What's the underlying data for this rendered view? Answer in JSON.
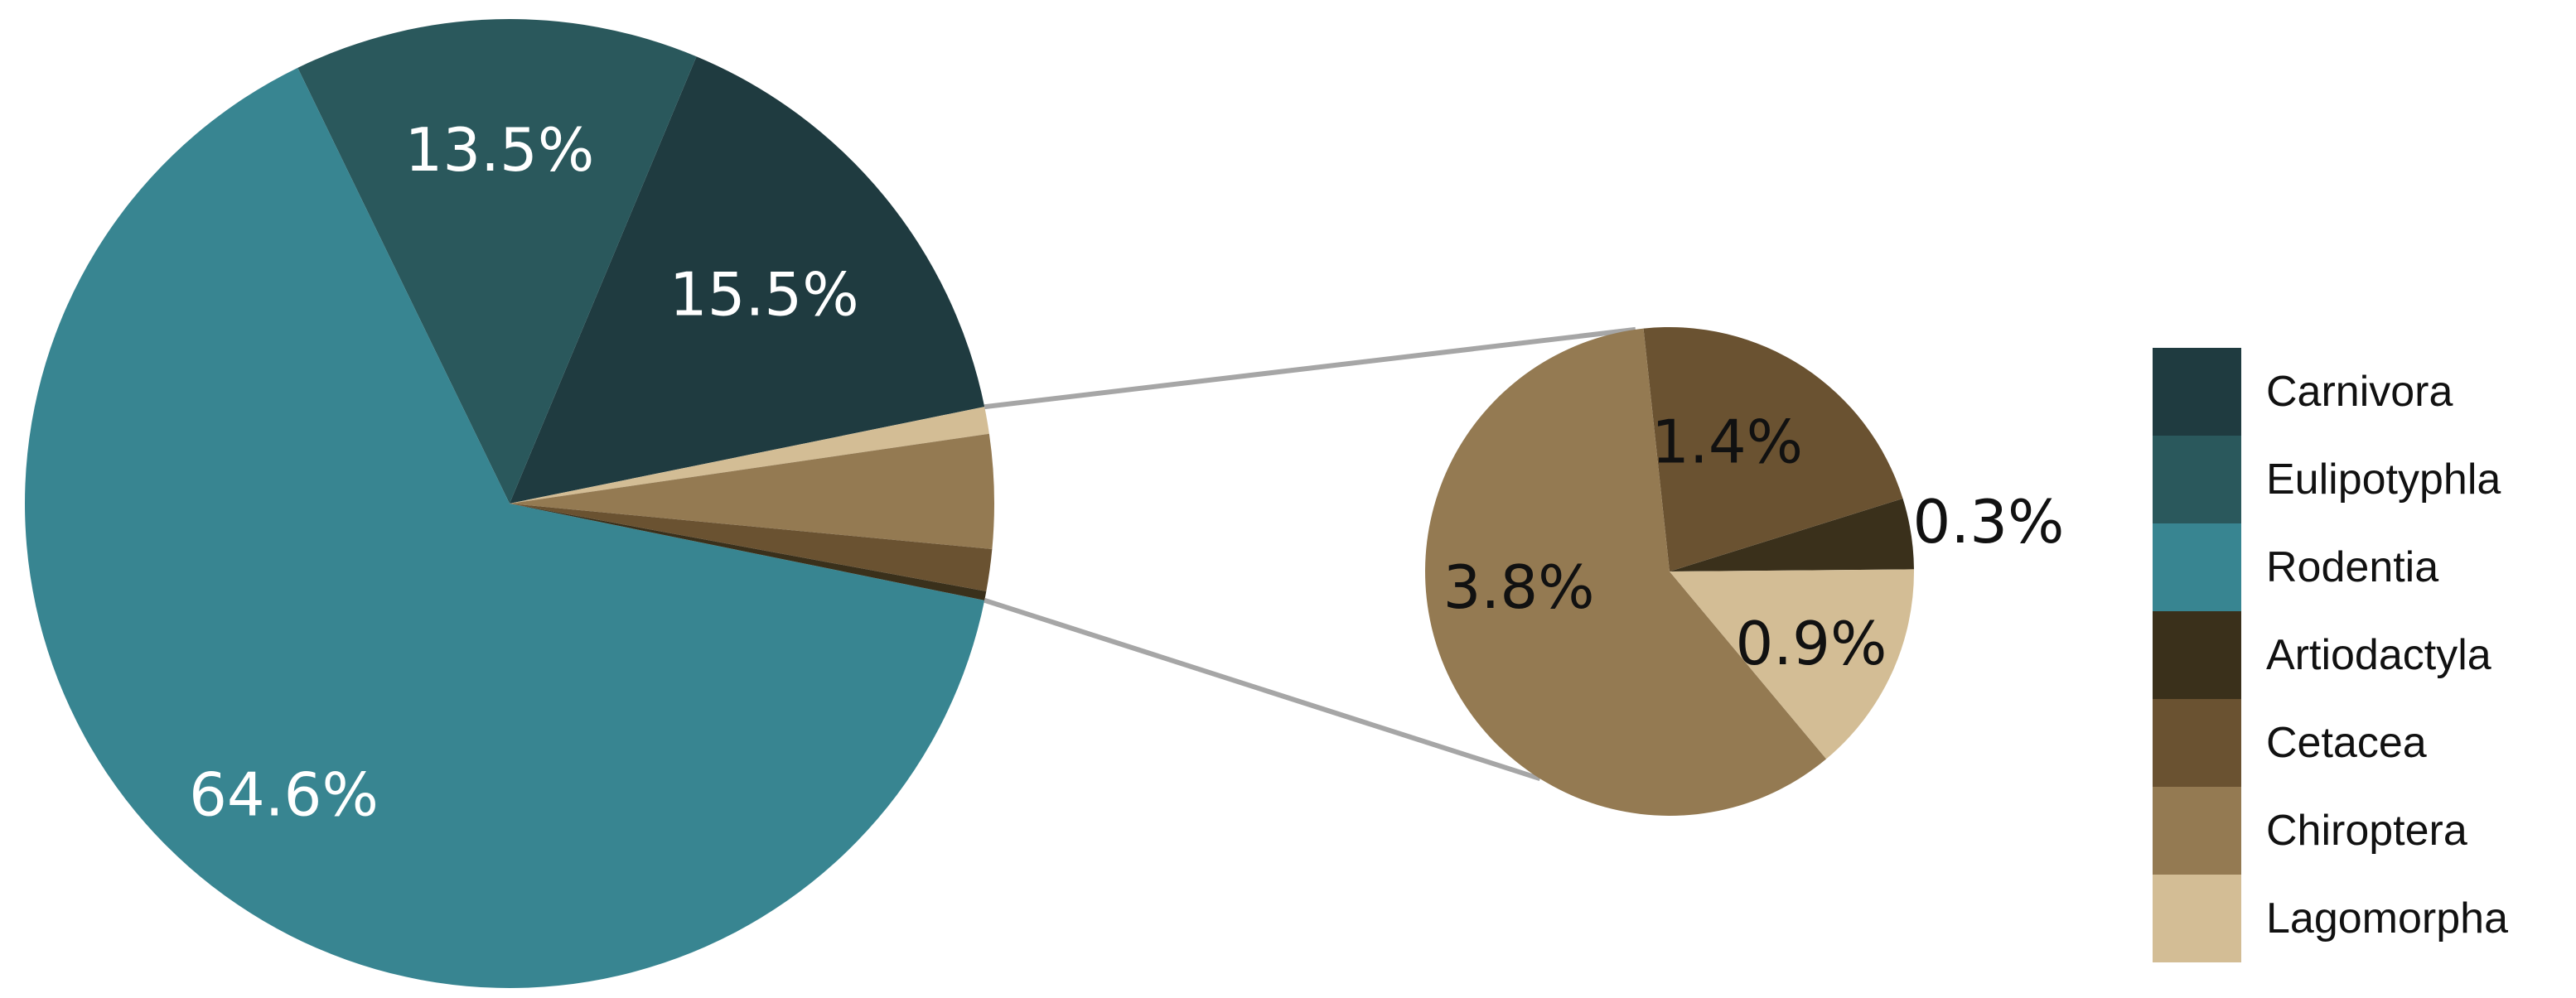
{
  "chart_data": {
    "type": "pie",
    "variant": "pie-of-pie",
    "title": "",
    "slices": [
      {
        "name": "Carnivora",
        "value": 15.5,
        "label": "15.5%",
        "color": "#1f3b40",
        "label_color": "#ffffff",
        "group": "main"
      },
      {
        "name": "Eulipotyphla",
        "value": 13.5,
        "label": "13.5%",
        "color": "#2a585c",
        "label_color": "#ffffff",
        "group": "main"
      },
      {
        "name": "Rodentia",
        "value": 64.6,
        "label": "64.6%",
        "color": "#388591",
        "label_color": "#ffffff",
        "group": "main"
      },
      {
        "name": "Chiroptera",
        "value": 3.8,
        "label": "3.8%",
        "color": "#947a52",
        "label_color": "#111111",
        "group": "secondary"
      },
      {
        "name": "Cetacea",
        "value": 1.4,
        "label": "1.4%",
        "color": "#6a5231",
        "label_color": "#111111",
        "group": "secondary"
      },
      {
        "name": "Artiodactyla",
        "value": 0.3,
        "label": "0.3%",
        "color": "#3a301b",
        "label_color": "#111111",
        "group": "secondary"
      },
      {
        "name": "Lagomorpha",
        "value": 0.9,
        "label": "0.9%",
        "color": "#d3bd95",
        "label_color": "#111111",
        "group": "secondary"
      }
    ],
    "legend": {
      "position": "right",
      "order": [
        "Carnivora",
        "Eulipotyphla",
        "Rodentia",
        "Artiodactyla",
        "Cetacea",
        "Chiroptera",
        "Lagomorpha"
      ]
    },
    "connector_color": "#a6a6a6"
  }
}
